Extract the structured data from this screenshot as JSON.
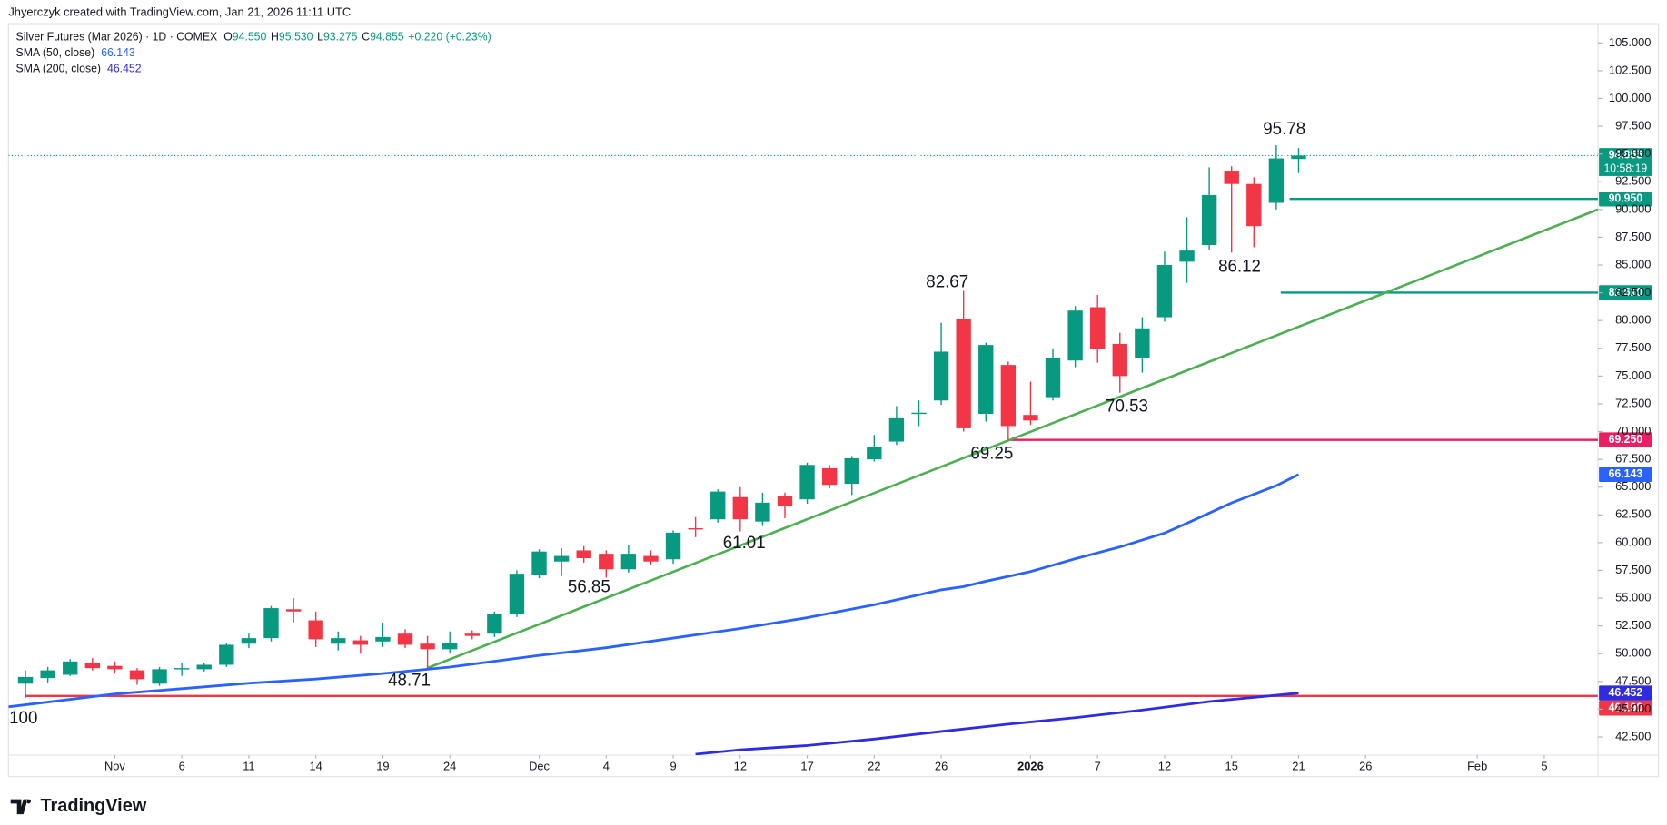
{
  "chart_data": {
    "type": "candlestick",
    "header": "Jhyerczyk created with TradingView.com, Jan 21, 2026 11:11 UTC",
    "symbol": "Silver Futures (Mar 2026) · 1D · COMEX",
    "legend": {
      "open": "94.550",
      "high": "95.530",
      "low": "93.275",
      "close": "94.855",
      "change": "+0.220 (+0.23%)"
    },
    "countdown": "10:58:19",
    "up_color": "#089981",
    "down_color": "#f23645",
    "open": [
      47.3,
      47.8,
      48.1,
      49.2,
      48.9,
      48.5,
      47.3,
      48.6,
      48.6,
      49.0,
      50.9,
      51.4,
      54.0,
      53.0,
      50.9,
      51.2,
      51.1,
      51.8,
      50.9,
      50.4,
      51.8,
      51.8,
      53.6,
      57.1,
      58.3,
      59.3,
      59.0,
      57.6,
      58.8,
      58.5,
      61.3,
      62.1,
      64.1,
      61.9,
      64.2,
      63.9,
      66.7,
      65.3,
      67.5,
      69.1,
      71.6,
      72.8,
      80.1,
      71.6,
      76.0,
      71.5,
      73.1,
      76.4,
      81.2,
      77.9,
      76.6,
      80.3,
      85.3,
      86.8,
      93.5,
      92.3,
      90.6,
      94.55
    ],
    "high": [
      48.5,
      48.8,
      49.5,
      49.6,
      49.3,
      48.7,
      48.8,
      49.2,
      49.2,
      51.0,
      51.8,
      54.3,
      55.0,
      53.8,
      52.0,
      51.6,
      52.8,
      52.2,
      51.6,
      52.0,
      52.1,
      53.8,
      57.5,
      59.4,
      59.5,
      59.7,
      59.3,
      59.8,
      59.3,
      61.1,
      62.3,
      64.8,
      65.0,
      64.5,
      64.5,
      67.2,
      67.0,
      67.8,
      69.7,
      72.3,
      72.8,
      79.8,
      82.67,
      78.0,
      76.3,
      74.5,
      77.5,
      81.3,
      82.3,
      78.9,
      80.3,
      86.2,
      89.3,
      93.8,
      93.9,
      92.9,
      95.78,
      95.53
    ],
    "low": [
      46.0,
      47.4,
      48.0,
      48.5,
      48.2,
      47.2,
      47.1,
      48.0,
      48.4,
      48.8,
      50.5,
      51.1,
      52.8,
      50.6,
      50.3,
      50.0,
      50.6,
      50.5,
      48.71,
      50.0,
      51.3,
      51.5,
      53.3,
      56.8,
      57.0,
      58.2,
      56.85,
      57.3,
      58.0,
      58.1,
      60.5,
      61.8,
      61.01,
      61.5,
      62.2,
      63.5,
      64.9,
      64.3,
      67.3,
      68.8,
      70.5,
      72.4,
      70.0,
      70.9,
      69.25,
      70.6,
      72.8,
      75.8,
      76.2,
      73.5,
      75.3,
      79.9,
      83.4,
      86.4,
      86.12,
      86.6,
      90.0,
      93.275
    ],
    "close": [
      47.9,
      48.5,
      49.3,
      48.7,
      48.6,
      47.7,
      48.6,
      48.7,
      49.0,
      50.8,
      51.4,
      54.1,
      53.8,
      51.3,
      51.4,
      50.8,
      51.5,
      50.8,
      50.4,
      51.0,
      51.6,
      53.6,
      57.2,
      59.2,
      58.8,
      58.6,
      57.6,
      59.0,
      58.3,
      60.9,
      61.2,
      64.6,
      62.1,
      63.6,
      63.3,
      67.0,
      65.2,
      67.6,
      68.6,
      71.2,
      71.7,
      77.2,
      70.3,
      77.8,
      70.5,
      71.0,
      76.6,
      80.9,
      77.4,
      75.0,
      79.3,
      85.0,
      86.3,
      91.3,
      92.3,
      88.5,
      94.6,
      94.855
    ],
    "series": [
      {
        "name": "SMA (50, close)",
        "color": "#2962ff",
        "value_label": "66.143",
        "x": [
          -0.76,
          4,
          7,
          10,
          13,
          16,
          19,
          23,
          26,
          29,
          32,
          35,
          38,
          41,
          42,
          43,
          45,
          47,
          49,
          51,
          52,
          54,
          56,
          57
        ],
        "values": [
          45.21,
          46.37,
          46.85,
          47.34,
          47.72,
          48.21,
          48.79,
          49.85,
          50.53,
          51.4,
          52.27,
          53.24,
          54.4,
          55.75,
          56.04,
          56.52,
          57.39,
          58.55,
          59.61,
          60.87,
          61.75,
          63.58,
          65.13,
          66.143
        ]
      },
      {
        "name": "SMA (200, close)",
        "color": "#2f2ce0",
        "value_label": "46.452",
        "x": [
          30,
          32,
          35,
          38,
          41,
          44,
          47,
          50,
          53,
          57
        ],
        "values": [
          40.95,
          41.34,
          41.73,
          42.31,
          43.0,
          43.66,
          44.24,
          44.92,
          45.69,
          46.452
        ]
      }
    ],
    "levels": [
      {
        "value": 90.95,
        "label": "90.950",
        "from": 56.6,
        "color": "#089981"
      },
      {
        "value": 82.51,
        "label": "82.510",
        "from": 56.2,
        "color": "#089981"
      },
      {
        "value": 69.25,
        "label": "69.250",
        "from": 44.1,
        "color": "#e91e63"
      },
      {
        "value": 46.19,
        "label": "46.190",
        "from": 0,
        "color": "#f23645"
      }
    ],
    "trendline": {
      "color": "#4caf50",
      "from": [
        18,
        48.71
      ],
      "to": [
        70.4,
        90.0
      ]
    },
    "annotations": [
      "95.78",
      "86.12",
      "82.67",
      "70.53",
      "69.25",
      "61.01",
      "56.85",
      "48.71",
      "100"
    ],
    "xlim": [
      -0.76,
      70.4
    ],
    "xticks": [
      {
        "value": 4,
        "label": "Nov"
      },
      {
        "value": 7,
        "label": "6"
      },
      {
        "value": 10,
        "label": "11"
      },
      {
        "value": 13,
        "label": "14"
      },
      {
        "value": 16,
        "label": "19"
      },
      {
        "value": 19,
        "label": "24"
      },
      {
        "value": 23,
        "label": "Dec"
      },
      {
        "value": 26,
        "label": "4"
      },
      {
        "value": 29,
        "label": "9"
      },
      {
        "value": 32,
        "label": "12"
      },
      {
        "value": 35,
        "label": "17"
      },
      {
        "value": 38,
        "label": "22"
      },
      {
        "value": 41,
        "label": "26"
      },
      {
        "value": 45,
        "label": "2026"
      },
      {
        "value": 48,
        "label": "7"
      },
      {
        "value": 51,
        "label": "12"
      },
      {
        "value": 54,
        "label": "15"
      },
      {
        "value": 57,
        "label": "21"
      },
      {
        "value": 60,
        "label": "26"
      },
      {
        "value": 65,
        "label": "Feb"
      },
      {
        "value": 68,
        "label": "5"
      }
    ],
    "ylim": [
      40.86,
      106.74
    ],
    "yticks": [
      {
        "value": 42.5,
        "label": "42.500"
      },
      {
        "value": 45,
        "label": "45.000"
      },
      {
        "value": 47.5,
        "label": "47.500"
      },
      {
        "value": 50,
        "label": "50.000"
      },
      {
        "value": 52.5,
        "label": "52.500"
      },
      {
        "value": 55,
        "label": "55.000"
      },
      {
        "value": 57.5,
        "label": "57.500"
      },
      {
        "value": 60,
        "label": "60.000"
      },
      {
        "value": 62.5,
        "label": "62.500"
      },
      {
        "value": 65,
        "label": "65.000"
      },
      {
        "value": 67.5,
        "label": "67.500"
      },
      {
        "value": 70,
        "label": "70.000"
      },
      {
        "value": 72.5,
        "label": "72.500"
      },
      {
        "value": 75,
        "label": "75.000"
      },
      {
        "value": 77.5,
        "label": "77.500"
      },
      {
        "value": 80,
        "label": "80.000"
      },
      {
        "value": 82.5,
        "label": "82.500"
      },
      {
        "value": 85,
        "label": "85.000"
      },
      {
        "value": 87.5,
        "label": "87.500"
      },
      {
        "value": 90,
        "label": "90.000"
      },
      {
        "value": 92.5,
        "label": "92.500"
      },
      {
        "value": 95,
        "label": "95.000"
      },
      {
        "value": 97.5,
        "label": "97.500"
      },
      {
        "value": 100,
        "label": "100.000"
      },
      {
        "value": 102.5,
        "label": "102.500"
      },
      {
        "value": 105,
        "label": "105.000"
      }
    ],
    "grid": false,
    "brand": "TradingView"
  }
}
